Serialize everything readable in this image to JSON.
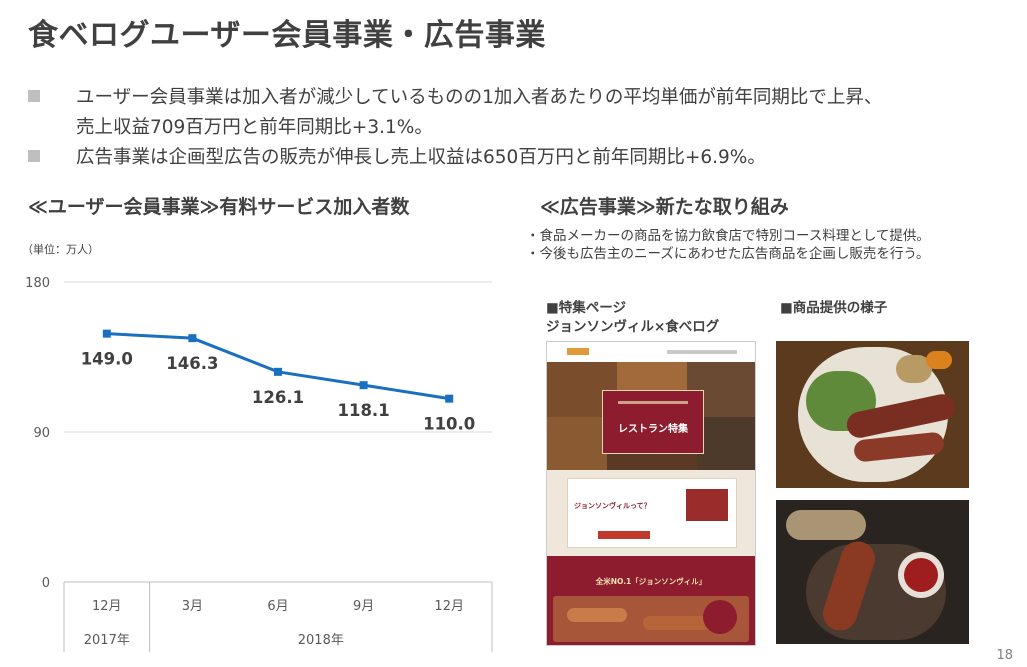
{
  "title": "食ベログユーザー会員事業・広告事業",
  "bullets": [
    {
      "line1": "ユーザー会員事業は加入者が減少しているものの1加入者あたりの平均単価が前年同期比で上昇、",
      "line2": "売上収益709百万円と前年同期比+3.1%。"
    },
    {
      "line1": "広告事業は企画型広告の販売が伸長し売上収益は650百万円と前年同期比+6.9%。"
    }
  ],
  "left_section": {
    "heading": "≪ユーザー会員事業≫有料サービス加入者数"
  },
  "right_section": {
    "heading": "≪広告事業≫新たな取り組み",
    "notes": [
      "・食品メーカーの商品を協力飲食店で特別コース料理として提供。",
      "・今後も広告主のニーズにあわせた広告商品を企画し販売を行う。"
    ],
    "feature_caption_1": "■特集ページ",
    "feature_caption_2": "ジョンソンヴィル×食べログ",
    "photo_caption": "■商品提供の様子",
    "webpage": {
      "banner_text": "レストラン特集",
      "promo_text": "ジョンソンヴィルって？",
      "bottom_text": "全米NO.1「ジョンソンヴィル」"
    }
  },
  "page_number": "18",
  "colors": {
    "line": "#1a70c0",
    "grid": "#d9d9d9",
    "maroon": "#8c1c2e"
  },
  "chart_data": {
    "type": "line",
    "unit_note": "（単位：万人）",
    "categories": [
      "12月",
      "3月",
      "6月",
      "9月",
      "12月"
    ],
    "year_groups": [
      {
        "label": "2017年",
        "span": 1
      },
      {
        "label": "2018年",
        "span": 4
      }
    ],
    "values": [
      149.0,
      146.3,
      126.1,
      118.1,
      110.0
    ],
    "value_labels": [
      "149.0",
      "146.3",
      "126.1",
      "118.1",
      "110.0"
    ],
    "ylim": [
      0,
      180
    ],
    "yticks": [
      0,
      90,
      180
    ],
    "grid": true,
    "legend": "none"
  }
}
